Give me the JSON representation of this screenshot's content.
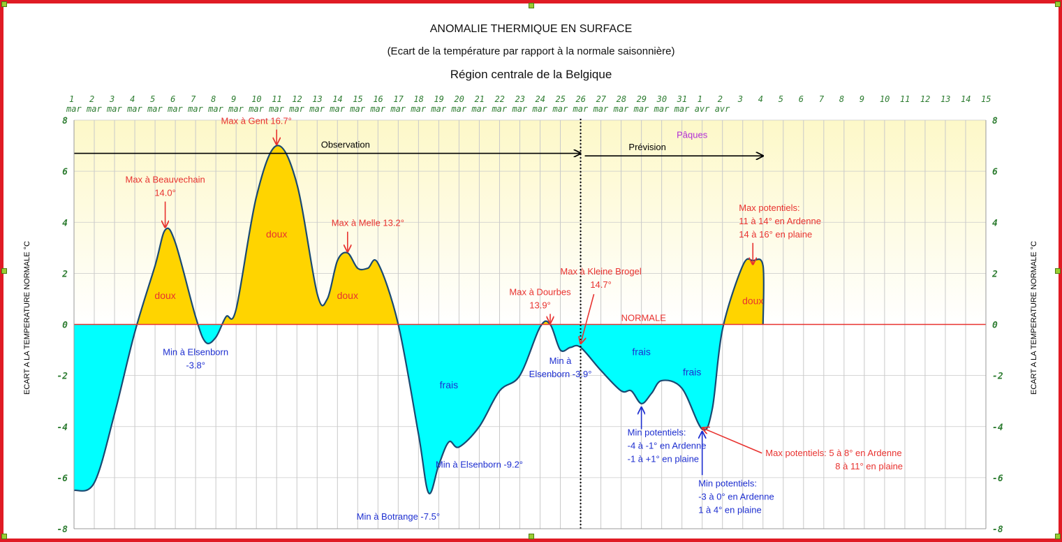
{
  "colors": {
    "frame": "#e01b24",
    "plot_background": "#fdf8c8",
    "warm_fill": "#ffd400",
    "cold_fill": "#00ffff",
    "curve": "#1a4a72",
    "normal_line": "#e8322f",
    "axis_labels": "#2e7d32",
    "annotation_red": "#e8322f",
    "annotation_blue": "#1e2fd0",
    "easter_label": "#b02bd6",
    "arrow_black": "#000000"
  },
  "titles": {
    "line1": "ANOMALIE THERMIQUE EN SURFACE",
    "line2": "(Ecart de la température par rapport à la normale saisonnière)",
    "line3": "Région centrale de la Belgique"
  },
  "chart_data": {
    "type": "area",
    "x_categories": [
      {
        "day": "1",
        "month": "mar"
      },
      {
        "day": "2",
        "month": "mar"
      },
      {
        "day": "3",
        "month": "mar"
      },
      {
        "day": "4",
        "month": "mar"
      },
      {
        "day": "5",
        "month": "mar"
      },
      {
        "day": "6",
        "month": "mar"
      },
      {
        "day": "7",
        "month": "mar"
      },
      {
        "day": "8",
        "month": "mar"
      },
      {
        "day": "9",
        "month": "mar"
      },
      {
        "day": "10",
        "month": "mar"
      },
      {
        "day": "11",
        "month": "mar"
      },
      {
        "day": "12",
        "month": "mar"
      },
      {
        "day": "13",
        "month": "mar"
      },
      {
        "day": "14",
        "month": "mar"
      },
      {
        "day": "15",
        "month": "mar"
      },
      {
        "day": "16",
        "month": "mar"
      },
      {
        "day": "17",
        "month": "mar"
      },
      {
        "day": "18",
        "month": "mar"
      },
      {
        "day": "19",
        "month": "mar"
      },
      {
        "day": "20",
        "month": "mar"
      },
      {
        "day": "21",
        "month": "mar"
      },
      {
        "day": "22",
        "month": "mar"
      },
      {
        "day": "23",
        "month": "mar"
      },
      {
        "day": "24",
        "month": "mar"
      },
      {
        "day": "25",
        "month": "mar"
      },
      {
        "day": "26",
        "month": "mar"
      },
      {
        "day": "27",
        "month": "mar"
      },
      {
        "day": "28",
        "month": "mar"
      },
      {
        "day": "29",
        "month": "mar"
      },
      {
        "day": "30",
        "month": "mar"
      },
      {
        "day": "31",
        "month": "mar"
      },
      {
        "day": "1",
        "month": "avr"
      },
      {
        "day": "2",
        "month": "avr"
      },
      {
        "day": "3",
        "month": ""
      },
      {
        "day": "4",
        "month": ""
      },
      {
        "day": "5",
        "month": ""
      },
      {
        "day": "6",
        "month": ""
      },
      {
        "day": "7",
        "month": ""
      },
      {
        "day": "8",
        "month": ""
      },
      {
        "day": "9",
        "month": ""
      },
      {
        "day": "10",
        "month": ""
      },
      {
        "day": "11",
        "month": ""
      },
      {
        "day": "12",
        "month": ""
      },
      {
        "day": "13",
        "month": ""
      },
      {
        "day": "14",
        "month": ""
      },
      {
        "day": "15",
        "month": ""
      }
    ],
    "y_ticks": [
      "8",
      "6",
      "4",
      "2",
      "0",
      "-2",
      "-4",
      "-6",
      "-8"
    ],
    "ylim": [
      -8,
      8
    ],
    "ylabel_left": "ECART A LA TEMPERATURE NORMALE °C",
    "ylabel_right": "ECART A LA TEMPERATURE NORMALE °C",
    "grid": true,
    "series": [
      {
        "values": [
          [
            "2013-03-01",
            -6.5
          ],
          [
            "2013-03-02",
            -6.2
          ],
          [
            "2013-03-03",
            -3.5
          ],
          [
            "2013-03-04",
            -0.3
          ],
          [
            "2013-03-05",
            2.3
          ],
          [
            "2013-03-05T12",
            3.7
          ],
          [
            "2013-03-06",
            3.2
          ],
          [
            "2013-03-07",
            0.3
          ],
          [
            "2013-03-07T12",
            -0.7
          ],
          [
            "2013-03-08",
            -0.5
          ],
          [
            "2013-03-08T12",
            0.3
          ],
          [
            "2013-03-09",
            0.6
          ],
          [
            "2013-03-10",
            5.0
          ],
          [
            "2013-03-11",
            7.0
          ],
          [
            "2013-03-12",
            5.5
          ],
          [
            "2013-03-13",
            1.2
          ],
          [
            "2013-03-13T12",
            1.0
          ],
          [
            "2013-03-14",
            2.5
          ],
          [
            "2013-03-14T12",
            2.8
          ],
          [
            "2013-03-15",
            2.2
          ],
          [
            "2013-03-15T12",
            2.2
          ],
          [
            "2013-03-16",
            2.4
          ],
          [
            "2013-03-17",
            0.0
          ],
          [
            "2013-03-18",
            -4.3
          ],
          [
            "2013-03-18T12",
            -6.6
          ],
          [
            "2013-03-19",
            -5.5
          ],
          [
            "2013-03-19T12",
            -4.6
          ],
          [
            "2013-03-20",
            -4.8
          ],
          [
            "2013-03-21",
            -4.0
          ],
          [
            "2013-03-22",
            -2.6
          ],
          [
            "2013-03-23",
            -2.0
          ],
          [
            "2013-03-24",
            -0.1
          ],
          [
            "2013-03-24T12",
            0.0
          ],
          [
            "2013-03-25",
            -1.0
          ],
          [
            "2013-03-25T12",
            -0.9
          ],
          [
            "2013-03-26",
            -0.9
          ],
          [
            "2013-03-27",
            -1.8
          ],
          [
            "2013-03-28",
            -2.6
          ],
          [
            "2013-03-28T12",
            -2.6
          ],
          [
            "2013-03-29",
            -3.1
          ],
          [
            "2013-03-29T12",
            -2.7
          ],
          [
            "2013-03-30",
            -2.2
          ],
          [
            "2013-03-31",
            -2.5
          ],
          [
            "2013-04-01",
            -4.1
          ],
          [
            "2013-04-01T12",
            -3.3
          ],
          [
            "2013-04-02",
            -0.2
          ],
          [
            "2013-04-03",
            2.3
          ],
          [
            "2013-04-03T12",
            2.5
          ],
          [
            "2013-04-04",
            2.3
          ],
          [
            "2013-04-04",
            0.0
          ]
        ]
      },
      {
        "name": "NORMALE",
        "values": [
          [
            "2013-03-01",
            0.0
          ],
          [
            "2013-04-15",
            0.0
          ]
        ]
      }
    ],
    "region_labels": [
      {
        "text": "doux",
        "x": "2013-03-05T12",
        "y": 1.0,
        "color": "annotation_red"
      },
      {
        "text": "doux",
        "x": "2013-03-11",
        "y": 3.4,
        "color": "annotation_red"
      },
      {
        "text": "doux",
        "x": "2013-03-14T12",
        "y": 1.0,
        "color": "annotation_red"
      },
      {
        "text": "doux",
        "x": "2013-04-03T12",
        "y": 0.8,
        "color": "annotation_red"
      },
      {
        "text": "frais",
        "x": "2013-03-19T12",
        "y": -2.5,
        "color": "annotation_blue"
      },
      {
        "text": "frais",
        "x": "2013-03-29",
        "y": -1.2,
        "color": "annotation_blue"
      },
      {
        "text": "frais",
        "x": "2013-03-31T12",
        "y": -2.0,
        "color": "annotation_blue"
      }
    ],
    "phases": [
      {
        "label": "Observation",
        "from": "2013-03-01",
        "to": "2013-03-26"
      },
      {
        "label": "Prévision",
        "from": "2013-03-26",
        "to": "2013-04-04"
      }
    ],
    "observation_end": "2013-03-26",
    "easter_label": "Pâques",
    "normal_label": "NORMALE",
    "annotations": [
      {
        "lines": [
          "Max à Gent 16.7°"
        ],
        "color": "annotation_red",
        "label_at": [
          "2013-03-10",
          7.85
        ],
        "arrow_to": [
          "2013-03-11",
          7.05
        ]
      },
      {
        "lines": [
          "Max à Beauvechain",
          "14.0°"
        ],
        "color": "annotation_red",
        "label_at": [
          "2013-03-05T12",
          5.55
        ],
        "arrow_to": [
          "2013-03-05T12",
          3.8
        ]
      },
      {
        "lines": [
          "Max à Melle 13.2°"
        ],
        "color": "annotation_red",
        "label_at": [
          "2013-03-15T12",
          3.85
        ],
        "arrow_to": [
          "2013-03-14T12",
          2.85
        ]
      },
      {
        "lines": [
          "Max à Dourbes",
          "13.9°"
        ],
        "color": "annotation_red",
        "label_at": [
          "2013-03-24",
          1.15
        ],
        "arrow_to": [
          "2013-03-24T12",
          0.05
        ]
      },
      {
        "lines": [
          "Max à Kleine Brogel",
          "14.7°"
        ],
        "color": "annotation_red",
        "label_at": [
          "2013-03-27",
          1.95
        ],
        "arrow_to": [
          "2013-03-26",
          -0.75
        ]
      },
      {
        "lines": [
          "Max potentiels:",
          "11 à 14° en Ardenne",
          "14 à 16° en plaine"
        ],
        "color": "annotation_red",
        "label_at": [
          "2013-04-03T12",
          4.45
        ],
        "arrow_to": [
          "2013-04-03T12",
          2.35
        ]
      },
      {
        "lines": [
          "Max potentiels: 5 à 8° en Ardenne",
          "8 à 11° en plaine"
        ],
        "color": "annotation_red",
        "label_at": [
          "2013-04-05T12",
          -5.15
        ],
        "arrow_to": [
          "2013-04-01",
          -4.05
        ]
      },
      {
        "lines": [
          "Min à Elsenborn",
          "-3.8°"
        ],
        "color": "annotation_blue",
        "label_at": [
          "2013-03-07",
          -1.2
        ],
        "arrow_to": null
      },
      {
        "lines": [
          "Min à",
          "Elsenborn -3.9°"
        ],
        "color": "annotation_blue",
        "label_at": [
          "2013-03-25",
          -1.55
        ],
        "arrow_to": null
      },
      {
        "lines": [
          "Min à Elsenborn -9.2°"
        ],
        "color": "annotation_blue",
        "label_at": [
          "2013-03-21",
          -5.6
        ],
        "arrow_to": null
      },
      {
        "lines": [
          "Min à Botrange -7.5°"
        ],
        "color": "annotation_blue",
        "label_at": [
          "2013-03-17",
          -7.65
        ],
        "arrow_to": null
      },
      {
        "lines": [
          "Min potentiels:",
          "-4 à -1° en Ardenne",
          "-1 à +1° en plaine"
        ],
        "color": "annotation_blue",
        "label_at": [
          "2013-03-29",
          -4.35
        ],
        "arrow_to": [
          "2013-03-29",
          -3.25
        ],
        "arrow_from": [
          "2013-03-29",
          -4.1
        ]
      },
      {
        "lines": [
          "Min potentiels:",
          "-3 à 0° en Ardenne",
          "1 à 4° en plaine"
        ],
        "color": "annotation_blue",
        "label_at": [
          "2013-04-01T12",
          -6.35
        ],
        "arrow_to": [
          "2013-04-01",
          -4.2
        ],
        "arrow_from": [
          "2013-04-01",
          -5.9
        ]
      }
    ]
  }
}
